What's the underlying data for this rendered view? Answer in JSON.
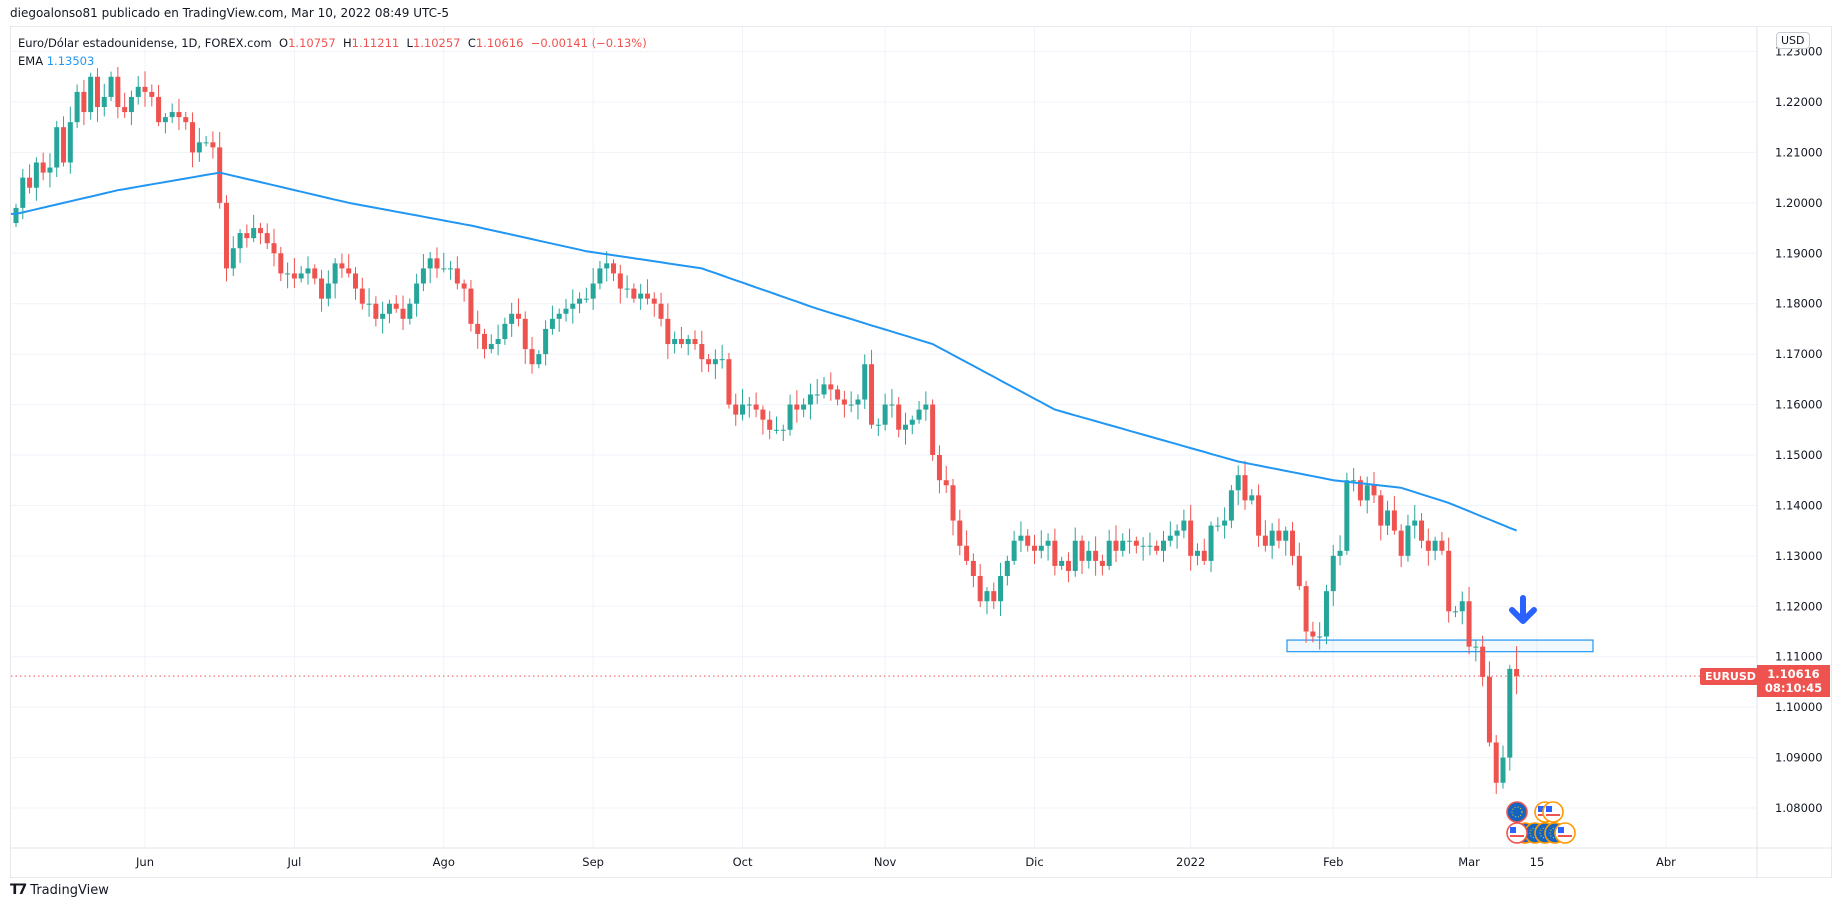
{
  "publish_line": "diegoalonso81 publicado en TradingView.com, Mar 10, 2022 08:49 UTC-5",
  "legend": {
    "symbol_desc": "Euro/Dólar estadounidense, 1D, FOREX.com",
    "o_label": "O",
    "o": "1.10757",
    "h_label": "H",
    "h": "1.11211",
    "l_label": "L",
    "l": "1.10257",
    "c_label": "C",
    "c": "1.10616",
    "change": "−0.00141 (−0.13%)",
    "ema_label": "EMA",
    "ema_value": "1.13503"
  },
  "currency": "USD",
  "last_price": {
    "symbol": "EURUSD",
    "price": "1.10616",
    "countdown": "08:10:45"
  },
  "footer_brand": "TradingView",
  "colors": {
    "up": "#26a69a",
    "down": "#ef5350",
    "ema": "#2196f3",
    "grid": "#f0f3fa"
  },
  "chart_data": {
    "type": "candlestick",
    "title": "Euro/Dólar estadounidense, 1D, FOREX.com",
    "ylim": [
      1.072,
      1.234
    ],
    "yticks": [
      "1.08000",
      "1.09000",
      "1.10000",
      "1.11000",
      "1.12000",
      "1.13000",
      "1.14000",
      "1.15000",
      "1.16000",
      "1.17000",
      "1.18000",
      "1.19000",
      "1.20000",
      "1.21000",
      "1.22000",
      "1.23000"
    ],
    "xticks": [
      {
        "label": "Jun",
        "index": 19
      },
      {
        "label": "Jul",
        "index": 41
      },
      {
        "label": "Ago",
        "index": 63
      },
      {
        "label": "Sep",
        "index": 85
      },
      {
        "label": "Oct",
        "index": 107
      },
      {
        "label": "Nov",
        "index": 128
      },
      {
        "label": "Dic",
        "index": 150
      },
      {
        "label": "2022",
        "index": 173
      },
      {
        "label": "Feb",
        "index": 194
      },
      {
        "label": "Mar",
        "index": 214
      },
      {
        "label": "15",
        "index": 224
      },
      {
        "label": "Abr",
        "index": 243
      }
    ],
    "closes": [
      1.199,
      1.205,
      1.203,
      1.208,
      1.206,
      1.207,
      1.215,
      1.208,
      1.216,
      1.222,
      1.218,
      1.225,
      1.219,
      1.221,
      1.225,
      1.219,
      1.218,
      1.221,
      1.223,
      1.222,
      1.221,
      1.216,
      1.217,
      1.218,
      1.217,
      1.216,
      1.21,
      1.212,
      1.212,
      1.211,
      1.2,
      1.187,
      1.191,
      1.194,
      1.193,
      1.195,
      1.194,
      1.192,
      1.19,
      1.186,
      1.186,
      1.185,
      1.186,
      1.187,
      1.185,
      1.181,
      1.184,
      1.188,
      1.187,
      1.186,
      1.183,
      1.18,
      1.18,
      1.177,
      1.178,
      1.18,
      1.179,
      1.177,
      1.18,
      1.184,
      1.187,
      1.189,
      1.187,
      1.187,
      1.187,
      1.184,
      1.183,
      1.176,
      1.174,
      1.171,
      1.172,
      1.173,
      1.176,
      1.178,
      1.177,
      1.171,
      1.168,
      1.17,
      1.175,
      1.177,
      1.178,
      1.179,
      1.18,
      1.181,
      1.181,
      1.184,
      1.187,
      1.188,
      1.186,
      1.183,
      1.183,
      1.181,
      1.182,
      1.181,
      1.18,
      1.177,
      1.172,
      1.173,
      1.172,
      1.173,
      1.172,
      1.169,
      1.168,
      1.169,
      1.169,
      1.16,
      1.158,
      1.16,
      1.16,
      1.159,
      1.157,
      1.155,
      1.155,
      1.155,
      1.16,
      1.159,
      1.16,
      1.162,
      1.162,
      1.164,
      1.163,
      1.161,
      1.16,
      1.16,
      1.161,
      1.168,
      1.156,
      1.156,
      1.16,
      1.16,
      1.155,
      1.156,
      1.157,
      1.159,
      1.16,
      1.15,
      1.145,
      1.144,
      1.137,
      1.132,
      1.129,
      1.126,
      1.121,
      1.123,
      1.121,
      1.126,
      1.129,
      1.133,
      1.134,
      1.132,
      1.131,
      1.132,
      1.133,
      1.128,
      1.129,
      1.127,
      1.133,
      1.129,
      1.131,
      1.129,
      1.128,
      1.133,
      1.131,
      1.133,
      1.133,
      1.132,
      1.132,
      1.132,
      1.131,
      1.133,
      1.134,
      1.135,
      1.137,
      1.13,
      1.131,
      1.129,
      1.136,
      1.136,
      1.137,
      1.143,
      1.146,
      1.141,
      1.142,
      1.134,
      1.132,
      1.135,
      1.133,
      1.135,
      1.13,
      1.124,
      1.115,
      1.114,
      1.114,
      1.123,
      1.13,
      1.131,
      1.145,
      1.145,
      1.141,
      1.144,
      1.142,
      1.136,
      1.139,
      1.135,
      1.13,
      1.136,
      1.137,
      1.133,
      1.131,
      1.133,
      1.131,
      1.119,
      1.119,
      1.121,
      1.112,
      1.112,
      1.106,
      1.093,
      1.085,
      1.09,
      1.1076,
      1.10616
    ],
    "last_candle": {
      "o": 1.10757,
      "h": 1.11211,
      "l": 1.10257,
      "c": 1.10616
    },
    "ema": [
      [
        0,
        1.1978
      ],
      [
        15,
        1.2025
      ],
      [
        30,
        1.206
      ],
      [
        49,
        1.2
      ],
      [
        67,
        1.1955
      ],
      [
        84,
        1.1904
      ],
      [
        101,
        1.187
      ],
      [
        118,
        1.179
      ],
      [
        135,
        1.172
      ],
      [
        153,
        1.159
      ],
      [
        180,
        1.1487
      ],
      [
        194,
        1.145
      ],
      [
        204,
        1.1435
      ],
      [
        211,
        1.1405
      ],
      [
        221,
        1.135
      ]
    ],
    "support_zone": [
      1.111,
      1.1133
    ],
    "last_price_line": 1.10616
  }
}
